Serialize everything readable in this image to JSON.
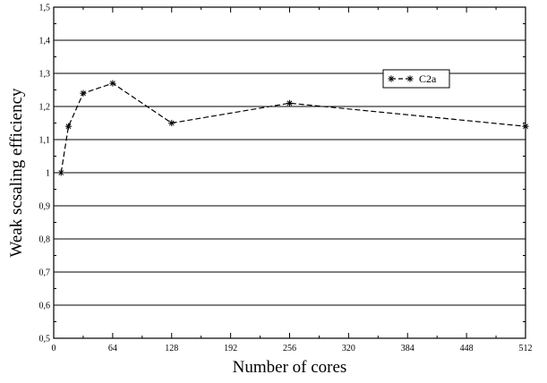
{
  "chart_data": {
    "type": "line",
    "xlabel": "Number of cores",
    "ylabel": "Weak scsaling efficiency",
    "xlim": [
      0,
      512
    ],
    "ylim": [
      0.5,
      1.5
    ],
    "x_ticks": [
      0,
      64,
      128,
      192,
      256,
      320,
      384,
      448,
      512
    ],
    "y_ticks": [
      0.5,
      0.6,
      0.7,
      0.8,
      0.9,
      1.0,
      1.1,
      1.2,
      1.3,
      1.4,
      1.5
    ],
    "x_tick_labels": [
      "0",
      "64",
      "128",
      "192",
      "256",
      "320",
      "384",
      "448",
      "512"
    ],
    "y_tick_labels": [
      "0,5",
      "0,6",
      "0,7",
      "0,8",
      "0,9",
      "1",
      "1,1",
      "1,2",
      "1,3",
      "1,4",
      "1,5"
    ],
    "grid": "horizontal",
    "legend": "top-right",
    "series": [
      {
        "name": "C2a",
        "line_style": "dashed",
        "marker": "asterisk",
        "color": "#000000",
        "x": [
          8,
          16,
          32,
          64,
          128,
          256,
          512
        ],
        "y": [
          1.0,
          1.14,
          1.24,
          1.27,
          1.15,
          1.21,
          1.14
        ]
      }
    ]
  }
}
